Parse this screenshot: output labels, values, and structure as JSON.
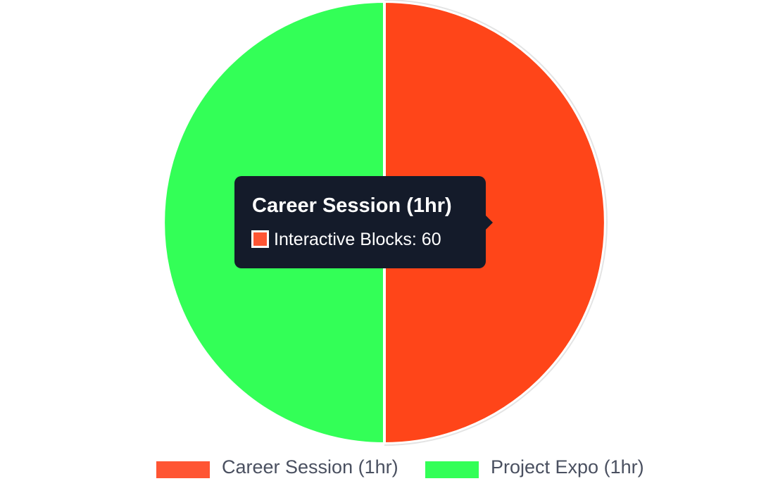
{
  "chart_data": {
    "type": "pie",
    "categories": [
      "Career Session (1hr)",
      "Project Expo (1hr)"
    ],
    "series": [
      {
        "name": "Interactive Blocks",
        "values": [
          60,
          60
        ]
      }
    ],
    "colors": [
      "#ff4519",
      "#33ff57"
    ],
    "legend_colors": [
      "#ff5533",
      "#33ff57"
    ],
    "legend": {
      "position": "bottom"
    },
    "tooltip": {
      "visible": true,
      "title": "Career Session (1hr)",
      "body": "Interactive Blocks: 60",
      "swatch_color": "#ff5533"
    }
  }
}
